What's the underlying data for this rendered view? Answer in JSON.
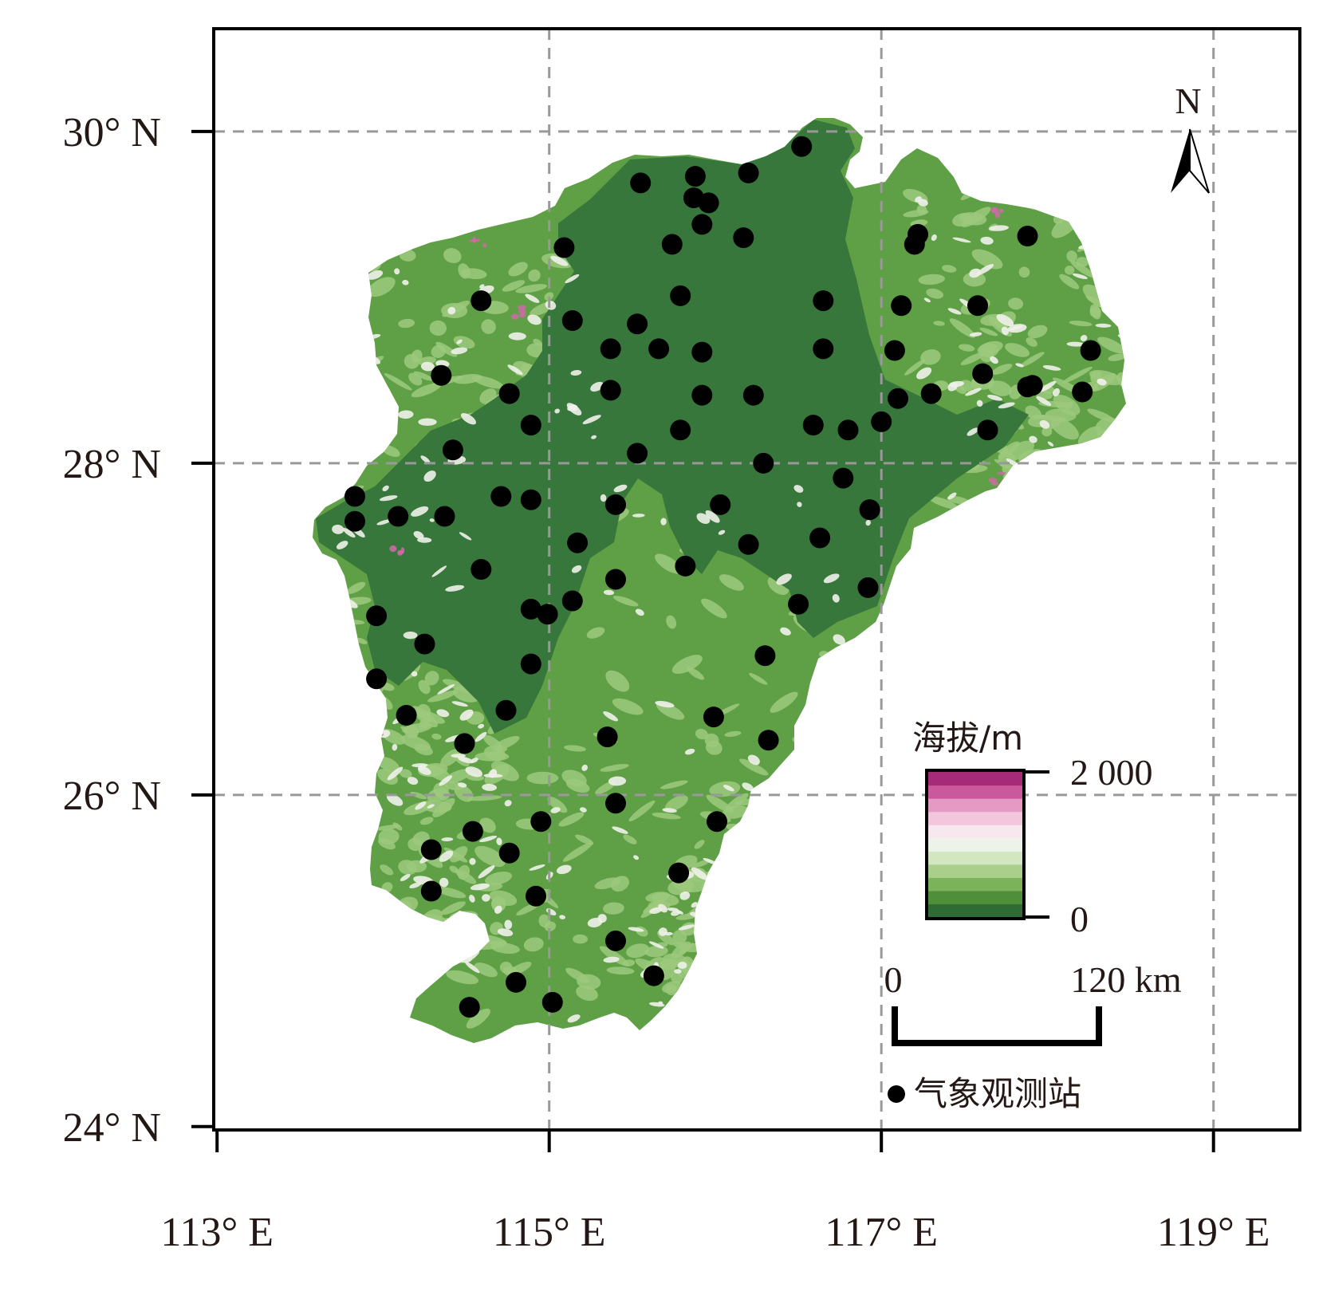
{
  "map": {
    "y_ticks": [
      "30° N",
      "28° N",
      "26° N",
      "24° N"
    ],
    "x_ticks": [
      "113° E",
      "115° E",
      "117° E",
      "119° E"
    ],
    "north_label": "N",
    "legend": {
      "elevation_title": "海拔/m",
      "elevation_max": "2 000",
      "elevation_min": "0",
      "colors": [
        "#2f6b35",
        "#4f8f3a",
        "#7bb35a",
        "#a9cf8a",
        "#d2e6c0",
        "#eef3ea",
        "#f7e8f0",
        "#f2c6dc",
        "#e39ac3",
        "#c9589c",
        "#a52a77"
      ],
      "scale_start": "0",
      "scale_end": "120 km",
      "station_label": "气象观测站"
    },
    "colors": {
      "lowland": "#38773b",
      "hill": "#5f9f45",
      "upland": "#9cc97c",
      "highland": "#f0f1ea",
      "peak": "#d06aa6",
      "station": "#000000",
      "grid": "#999999"
    },
    "extent": {
      "lon": [
        112.98,
        119.52
      ],
      "lat": [
        23.98,
        30.62
      ]
    },
    "stations": [
      [
        116.52,
        29.91
      ],
      [
        115.55,
        29.69
      ],
      [
        115.88,
        29.73
      ],
      [
        115.87,
        29.6
      ],
      [
        115.96,
        29.57
      ],
      [
        116.2,
        29.75
      ],
      [
        115.92,
        29.44
      ],
      [
        115.09,
        29.3
      ],
      [
        115.74,
        29.32
      ],
      [
        116.17,
        29.36
      ],
      [
        117.22,
        29.38
      ],
      [
        117.2,
        29.32
      ],
      [
        117.88,
        29.37
      ],
      [
        114.59,
        28.98
      ],
      [
        115.79,
        29.01
      ],
      [
        116.65,
        28.98
      ],
      [
        117.12,
        28.95
      ],
      [
        117.58,
        28.95
      ],
      [
        115.14,
        28.86
      ],
      [
        115.53,
        28.84
      ],
      [
        115.37,
        28.69
      ],
      [
        115.66,
        28.69
      ],
      [
        115.92,
        28.67
      ],
      [
        116.65,
        28.69
      ],
      [
        117.08,
        28.68
      ],
      [
        118.26,
        28.68
      ],
      [
        114.35,
        28.53
      ],
      [
        114.76,
        28.42
      ],
      [
        115.37,
        28.44
      ],
      [
        115.92,
        28.41
      ],
      [
        116.23,
        28.41
      ],
      [
        117.61,
        28.54
      ],
      [
        117.91,
        28.47
      ],
      [
        117.88,
        28.46
      ],
      [
        118.21,
        28.43
      ],
      [
        117.3,
        28.42
      ],
      [
        117.1,
        28.39
      ],
      [
        114.89,
        28.23
      ],
      [
        115.79,
        28.2
      ],
      [
        116.59,
        28.23
      ],
      [
        116.8,
        28.2
      ],
      [
        117.0,
        28.25
      ],
      [
        117.64,
        28.2
      ],
      [
        114.42,
        28.08
      ],
      [
        115.53,
        28.06
      ],
      [
        116.29,
        28.0
      ],
      [
        116.77,
        27.91
      ],
      [
        113.83,
        27.8
      ],
      [
        113.83,
        27.65
      ],
      [
        114.09,
        27.68
      ],
      [
        114.37,
        27.68
      ],
      [
        114.71,
        27.8
      ],
      [
        114.89,
        27.78
      ],
      [
        115.4,
        27.75
      ],
      [
        116.03,
        27.75
      ],
      [
        116.93,
        27.72
      ],
      [
        115.17,
        27.52
      ],
      [
        116.2,
        27.51
      ],
      [
        116.63,
        27.55
      ],
      [
        115.82,
        27.38
      ],
      [
        115.4,
        27.3
      ],
      [
        116.92,
        27.25
      ],
      [
        114.59,
        27.36
      ],
      [
        113.96,
        27.08
      ],
      [
        114.89,
        27.12
      ],
      [
        114.99,
        27.09
      ],
      [
        115.14,
        27.17
      ],
      [
        116.5,
        27.15
      ],
      [
        114.25,
        26.91
      ],
      [
        114.89,
        26.79
      ],
      [
        116.3,
        26.84
      ],
      [
        113.96,
        26.7
      ],
      [
        114.14,
        26.48
      ],
      [
        114.74,
        26.51
      ],
      [
        115.99,
        26.47
      ],
      [
        114.49,
        26.31
      ],
      [
        115.35,
        26.35
      ],
      [
        116.32,
        26.33
      ],
      [
        115.4,
        25.95
      ],
      [
        114.95,
        25.84
      ],
      [
        116.01,
        25.84
      ],
      [
        114.54,
        25.78
      ],
      [
        114.29,
        25.67
      ],
      [
        114.76,
        25.65
      ],
      [
        115.78,
        25.53
      ],
      [
        114.29,
        25.42
      ],
      [
        114.92,
        25.39
      ],
      [
        115.4,
        25.12
      ],
      [
        115.63,
        24.91
      ],
      [
        114.8,
        24.87
      ],
      [
        114.52,
        24.72
      ],
      [
        115.02,
        24.75
      ]
    ]
  }
}
